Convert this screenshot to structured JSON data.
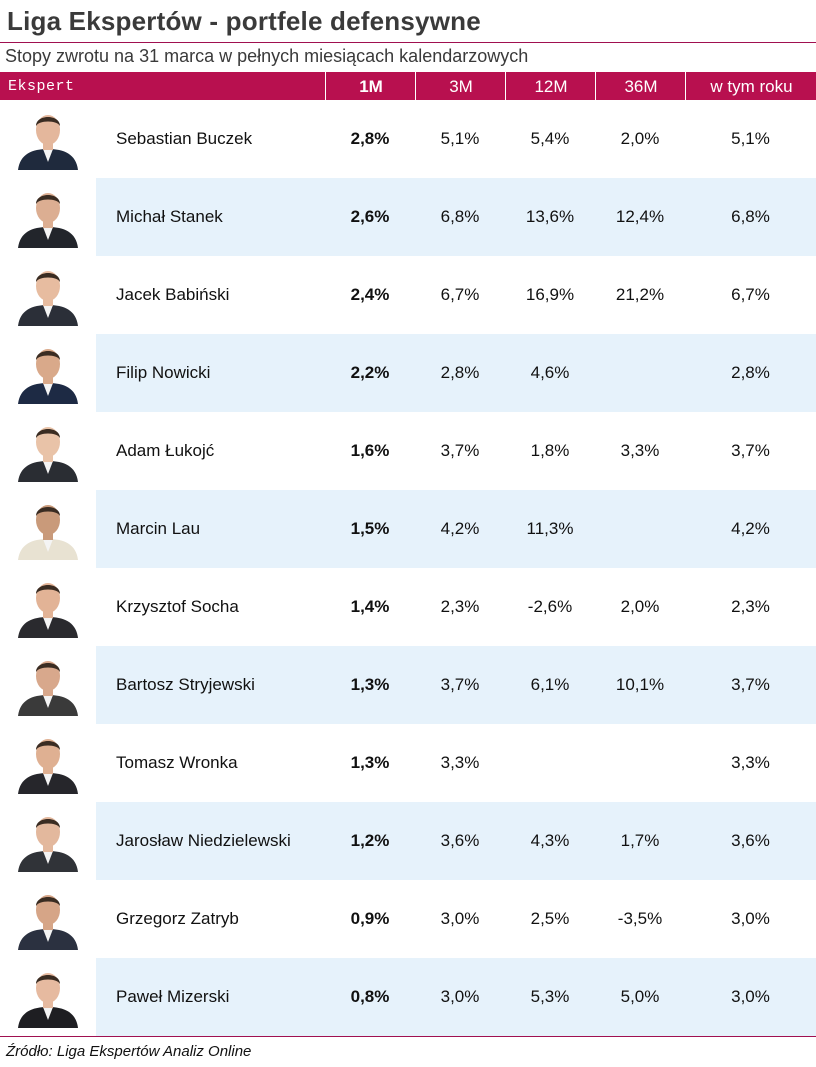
{
  "title": "Liga Ekspertów - portfele defensywne",
  "subtitle": "Stopy zwrotu na 31 marca w pełnych miesiącach kalendarzowych",
  "header": {
    "expert": "Ekspert",
    "m1": "1M",
    "m3": "3M",
    "m12": "12M",
    "m36": "36M",
    "ytd": "w tym roku"
  },
  "colors": {
    "header_bg": "#b8104f",
    "band_bg": "#e6f2fb",
    "rule": "#a01050"
  },
  "rows": [
    {
      "name": "Sebastian Buczek",
      "m1": "2,8%",
      "m3": "5,1%",
      "m12": "5,4%",
      "m36": "2,0%",
      "ytd": "5,1%",
      "photo": "person-photo-icon"
    },
    {
      "name": "Michał Stanek",
      "m1": "2,6%",
      "m3": "6,8%",
      "m12": "13,6%",
      "m36": "12,4%",
      "ytd": "6,8%",
      "photo": "person-photo-icon"
    },
    {
      "name": "Jacek Babiński",
      "m1": "2,4%",
      "m3": "6,7%",
      "m12": "16,9%",
      "m36": "21,2%",
      "ytd": "6,7%",
      "photo": "person-photo-icon"
    },
    {
      "name": "Filip Nowicki",
      "m1": "2,2%",
      "m3": "2,8%",
      "m12": "4,6%",
      "m36": "",
      "ytd": "2,8%",
      "photo": "person-photo-icon"
    },
    {
      "name": "Adam Łukojć",
      "m1": "1,6%",
      "m3": "3,7%",
      "m12": "1,8%",
      "m36": "3,3%",
      "ytd": "3,7%",
      "photo": "person-photo-icon"
    },
    {
      "name": "Marcin Lau",
      "m1": "1,5%",
      "m3": "4,2%",
      "m12": "11,3%",
      "m36": "",
      "ytd": "4,2%",
      "photo": "person-photo-icon"
    },
    {
      "name": "Krzysztof Socha",
      "m1": "1,4%",
      "m3": "2,3%",
      "m12": "-2,6%",
      "m36": "2,0%",
      "ytd": "2,3%",
      "photo": "person-photo-icon"
    },
    {
      "name": "Bartosz Stryjewski",
      "m1": "1,3%",
      "m3": "3,7%",
      "m12": "6,1%",
      "m36": "10,1%",
      "ytd": "3,7%",
      "photo": "person-photo-icon"
    },
    {
      "name": "Tomasz Wronka",
      "m1": "1,3%",
      "m3": "3,3%",
      "m12": "",
      "m36": "",
      "ytd": "3,3%",
      "photo": "person-photo-icon"
    },
    {
      "name": "Jarosław Niedzielewski",
      "m1": "1,2%",
      "m3": "3,6%",
      "m12": "4,3%",
      "m36": "1,7%",
      "ytd": "3,6%",
      "photo": "person-photo-icon"
    },
    {
      "name": "Grzegorz Zatryb",
      "m1": "0,9%",
      "m3": "3,0%",
      "m12": "2,5%",
      "m36": "-3,5%",
      "ytd": "3,0%",
      "photo": "person-photo-icon"
    },
    {
      "name": "Paweł Mizerski",
      "m1": "0,8%",
      "m3": "3,0%",
      "m12": "5,3%",
      "m36": "5,0%",
      "ytd": "3,0%",
      "photo": "person-photo-icon"
    }
  ],
  "source": "Źródło: Liga Ekspertów Analiz Online"
}
